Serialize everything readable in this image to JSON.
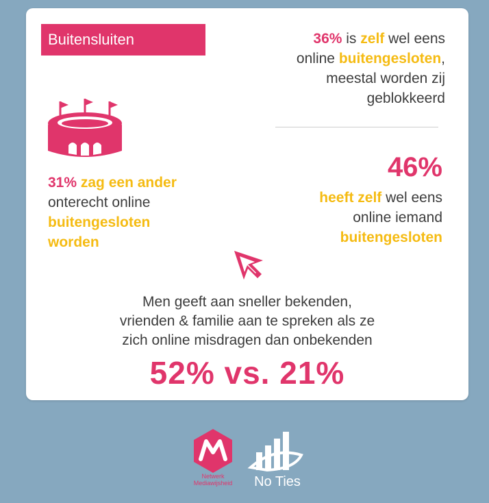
{
  "badge": "Buitensluiten",
  "top_right": {
    "pct": "36%",
    "t1": " is ",
    "zelf": "zelf",
    "t2": " wel eens",
    "t3": "online ",
    "kw": "buitengesloten",
    "t4": ",",
    "t5": "meestal worden zij",
    "t6": "geblokkeerd"
  },
  "mid_right": {
    "big": "46%",
    "kw1": "heeft zelf",
    "t1": " wel eens",
    "t2": "online iemand",
    "kw2": "buitengesloten"
  },
  "mid_left": {
    "pct": "31%",
    "kw1": " zag een ander",
    "t1": "onterecht online",
    "kw2": "buitengesloten",
    "kw3": "worden"
  },
  "bottom": {
    "line1": "Men geeft aan sneller bekenden,",
    "line2": "vrienden & familie aan te spreken als ze",
    "line3": "zich online misdragen dan onbekenden",
    "stat": "52% vs. 21%"
  },
  "logos": {
    "left_name": "Netwerk Mediawijsheid",
    "right_name": "No Ties"
  },
  "colors": {
    "pink": "#e0356b",
    "yellow": "#f5bb12",
    "background": "#86a8bf"
  },
  "icons": [
    "stadium-icon",
    "cursor-arrow-icon",
    "netwerk-mediawijsheid-logo",
    "no-ties-logo"
  ]
}
